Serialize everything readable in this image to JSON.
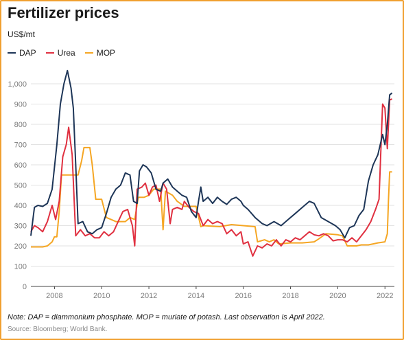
{
  "title": "Fertilizer prices",
  "unit": "US$/mt",
  "note": "Note: DAP = diammonium phosphate. MOP = muriate of potash. Last observation is April 2022.",
  "source": "Source: Bloomberg; World Bank.",
  "colors": {
    "frame": "#f0a030",
    "DAP": "#1d3557",
    "Urea": "#e03040",
    "MOP": "#f5a623",
    "grid": "#e2e2e2"
  },
  "chart_data": {
    "type": "line",
    "title": "Fertilizer prices",
    "ylabel": "US$/mt",
    "xlabel": "",
    "xlim": [
      2007.0,
      2022.4
    ],
    "ylim": [
      0,
      1000
    ],
    "x_ticks": [
      2008,
      2010,
      2012,
      2014,
      2016,
      2018,
      2020,
      2022
    ],
    "y_ticks": [
      0,
      100,
      200,
      300,
      400,
      500,
      600,
      700,
      800,
      900,
      1000
    ],
    "y_tick_labels": [
      "0",
      "100",
      "200",
      "300",
      "400",
      "500",
      "600",
      "700",
      "800",
      "900",
      "1,000"
    ],
    "grid": true,
    "legend_position": "top-left",
    "series": [
      {
        "name": "DAP",
        "points": [
          [
            2007.0,
            250
          ],
          [
            2007.15,
            390
          ],
          [
            2007.3,
            400
          ],
          [
            2007.5,
            395
          ],
          [
            2007.7,
            410
          ],
          [
            2007.9,
            480
          ],
          [
            2008.1,
            700
          ],
          [
            2008.25,
            900
          ],
          [
            2008.4,
            1000
          ],
          [
            2008.55,
            1065
          ],
          [
            2008.7,
            980
          ],
          [
            2008.8,
            880
          ],
          [
            2008.9,
            600
          ],
          [
            2009.0,
            310
          ],
          [
            2009.2,
            320
          ],
          [
            2009.4,
            270
          ],
          [
            2009.6,
            260
          ],
          [
            2009.8,
            280
          ],
          [
            2010.0,
            290
          ],
          [
            2010.2,
            360
          ],
          [
            2010.4,
            440
          ],
          [
            2010.6,
            480
          ],
          [
            2010.8,
            500
          ],
          [
            2011.0,
            560
          ],
          [
            2011.2,
            550
          ],
          [
            2011.35,
            420
          ],
          [
            2011.5,
            410
          ],
          [
            2011.6,
            570
          ],
          [
            2011.75,
            600
          ],
          [
            2011.9,
            590
          ],
          [
            2012.1,
            560
          ],
          [
            2012.3,
            480
          ],
          [
            2012.5,
            470
          ],
          [
            2012.6,
            510
          ],
          [
            2012.8,
            530
          ],
          [
            2013.0,
            490
          ],
          [
            2013.2,
            470
          ],
          [
            2013.4,
            450
          ],
          [
            2013.6,
            440
          ],
          [
            2013.8,
            370
          ],
          [
            2014.0,
            340
          ],
          [
            2014.1,
            420
          ],
          [
            2014.2,
            490
          ],
          [
            2014.3,
            420
          ],
          [
            2014.5,
            440
          ],
          [
            2014.7,
            410
          ],
          [
            2014.9,
            440
          ],
          [
            2015.1,
            420
          ],
          [
            2015.3,
            405
          ],
          [
            2015.5,
            430
          ],
          [
            2015.7,
            440
          ],
          [
            2015.9,
            420
          ],
          [
            2016.0,
            400
          ],
          [
            2016.2,
            380
          ],
          [
            2016.5,
            340
          ],
          [
            2016.8,
            310
          ],
          [
            2017.0,
            300
          ],
          [
            2017.3,
            320
          ],
          [
            2017.6,
            300
          ],
          [
            2017.9,
            330
          ],
          [
            2018.2,
            360
          ],
          [
            2018.5,
            390
          ],
          [
            2018.8,
            420
          ],
          [
            2019.0,
            410
          ],
          [
            2019.3,
            340
          ],
          [
            2019.6,
            320
          ],
          [
            2019.9,
            300
          ],
          [
            2020.1,
            280
          ],
          [
            2020.3,
            240
          ],
          [
            2020.5,
            290
          ],
          [
            2020.7,
            300
          ],
          [
            2020.9,
            350
          ],
          [
            2021.1,
            380
          ],
          [
            2021.3,
            520
          ],
          [
            2021.5,
            600
          ],
          [
            2021.7,
            650
          ],
          [
            2021.9,
            750
          ],
          [
            2022.0,
            700
          ],
          [
            2022.1,
            800
          ],
          [
            2022.2,
            945
          ],
          [
            2022.3,
            955
          ]
        ]
      },
      {
        "name": "Urea",
        "points": [
          [
            2007.0,
            270
          ],
          [
            2007.15,
            300
          ],
          [
            2007.3,
            290
          ],
          [
            2007.5,
            270
          ],
          [
            2007.7,
            320
          ],
          [
            2007.9,
            400
          ],
          [
            2008.05,
            330
          ],
          [
            2008.2,
            420
          ],
          [
            2008.35,
            640
          ],
          [
            2008.5,
            700
          ],
          [
            2008.6,
            785
          ],
          [
            2008.75,
            650
          ],
          [
            2008.9,
            250
          ],
          [
            2009.1,
            280
          ],
          [
            2009.3,
            250
          ],
          [
            2009.5,
            260
          ],
          [
            2009.7,
            240
          ],
          [
            2009.9,
            240
          ],
          [
            2010.1,
            270
          ],
          [
            2010.3,
            250
          ],
          [
            2010.5,
            270
          ],
          [
            2010.7,
            320
          ],
          [
            2010.9,
            370
          ],
          [
            2011.1,
            380
          ],
          [
            2011.3,
            300
          ],
          [
            2011.4,
            200
          ],
          [
            2011.5,
            480
          ],
          [
            2011.7,
            490
          ],
          [
            2011.85,
            510
          ],
          [
            2012.0,
            450
          ],
          [
            2012.15,
            490
          ],
          [
            2012.3,
            500
          ],
          [
            2012.45,
            420
          ],
          [
            2012.6,
            510
          ],
          [
            2012.75,
            480
          ],
          [
            2012.9,
            310
          ],
          [
            2013.0,
            380
          ],
          [
            2013.2,
            390
          ],
          [
            2013.4,
            380
          ],
          [
            2013.5,
            420
          ],
          [
            2013.7,
            390
          ],
          [
            2013.9,
            370
          ],
          [
            2014.1,
            360
          ],
          [
            2014.3,
            300
          ],
          [
            2014.5,
            330
          ],
          [
            2014.7,
            310
          ],
          [
            2014.9,
            320
          ],
          [
            2015.1,
            310
          ],
          [
            2015.3,
            260
          ],
          [
            2015.5,
            280
          ],
          [
            2015.7,
            250
          ],
          [
            2015.9,
            270
          ],
          [
            2016.0,
            210
          ],
          [
            2016.2,
            220
          ],
          [
            2016.4,
            150
          ],
          [
            2016.6,
            200
          ],
          [
            2016.8,
            190
          ],
          [
            2017.0,
            210
          ],
          [
            2017.2,
            200
          ],
          [
            2017.4,
            230
          ],
          [
            2017.6,
            200
          ],
          [
            2017.8,
            230
          ],
          [
            2018.0,
            220
          ],
          [
            2018.2,
            240
          ],
          [
            2018.4,
            230
          ],
          [
            2018.6,
            250
          ],
          [
            2018.8,
            270
          ],
          [
            2019.0,
            255
          ],
          [
            2019.2,
            250
          ],
          [
            2019.4,
            260
          ],
          [
            2019.6,
            250
          ],
          [
            2019.8,
            225
          ],
          [
            2020.0,
            230
          ],
          [
            2020.2,
            230
          ],
          [
            2020.4,
            220
          ],
          [
            2020.6,
            240
          ],
          [
            2020.8,
            220
          ],
          [
            2021.0,
            250
          ],
          [
            2021.2,
            280
          ],
          [
            2021.4,
            320
          ],
          [
            2021.6,
            380
          ],
          [
            2021.75,
            430
          ],
          [
            2021.9,
            900
          ],
          [
            2022.0,
            880
          ],
          [
            2022.1,
            680
          ],
          [
            2022.2,
            920
          ],
          [
            2022.3,
            925
          ]
        ]
      },
      {
        "name": "MOP",
        "points": [
          [
            2007.0,
            195
          ],
          [
            2007.5,
            195
          ],
          [
            2007.7,
            200
          ],
          [
            2007.9,
            220
          ],
          [
            2008.0,
            245
          ],
          [
            2008.1,
            245
          ],
          [
            2008.2,
            370
          ],
          [
            2008.3,
            550
          ],
          [
            2008.5,
            550
          ],
          [
            2008.8,
            550
          ],
          [
            2009.0,
            550
          ],
          [
            2009.15,
            620
          ],
          [
            2009.25,
            685
          ],
          [
            2009.5,
            685
          ],
          [
            2009.6,
            600
          ],
          [
            2009.75,
            430
          ],
          [
            2010.0,
            430
          ],
          [
            2010.2,
            340
          ],
          [
            2010.4,
            330
          ],
          [
            2010.6,
            320
          ],
          [
            2010.8,
            320
          ],
          [
            2011.0,
            320
          ],
          [
            2011.2,
            340
          ],
          [
            2011.4,
            330
          ],
          [
            2011.55,
            440
          ],
          [
            2011.8,
            440
          ],
          [
            2012.0,
            450
          ],
          [
            2012.2,
            480
          ],
          [
            2012.5,
            480
          ],
          [
            2012.6,
            280
          ],
          [
            2012.7,
            470
          ],
          [
            2013.0,
            450
          ],
          [
            2013.2,
            420
          ],
          [
            2013.5,
            395
          ],
          [
            2013.8,
            395
          ],
          [
            2014.0,
            395
          ],
          [
            2014.2,
            295
          ],
          [
            2014.3,
            300
          ],
          [
            2015.0,
            295
          ],
          [
            2015.5,
            305
          ],
          [
            2016.0,
            300
          ],
          [
            2016.5,
            295
          ],
          [
            2016.6,
            220
          ],
          [
            2016.9,
            230
          ],
          [
            2017.1,
            220
          ],
          [
            2017.2,
            225
          ],
          [
            2017.3,
            230
          ],
          [
            2017.5,
            210
          ],
          [
            2018.0,
            215
          ],
          [
            2018.5,
            215
          ],
          [
            2019.0,
            220
          ],
          [
            2019.2,
            235
          ],
          [
            2019.5,
            260
          ],
          [
            2020.0,
            255
          ],
          [
            2020.2,
            250
          ],
          [
            2020.4,
            200
          ],
          [
            2020.8,
            200
          ],
          [
            2021.0,
            205
          ],
          [
            2021.3,
            205
          ],
          [
            2021.5,
            210
          ],
          [
            2021.7,
            215
          ],
          [
            2022.0,
            220
          ],
          [
            2022.1,
            260
          ],
          [
            2022.15,
            430
          ],
          [
            2022.2,
            565
          ],
          [
            2022.3,
            565
          ]
        ]
      }
    ]
  }
}
